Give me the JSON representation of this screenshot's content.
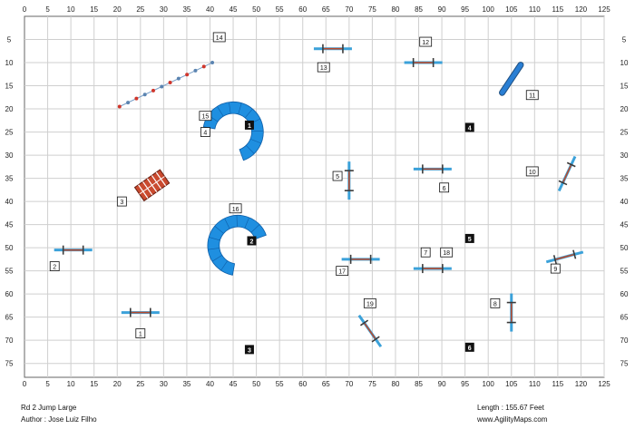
{
  "course": {
    "title": "Rd 2 Jump Large",
    "author": "Author : Jose Luiz Filho",
    "length": "Length : 155.67 Feet",
    "site": "www.AgilityMaps.com"
  },
  "axes": {
    "x_ticks": [
      0,
      5,
      10,
      15,
      20,
      25,
      30,
      35,
      40,
      45,
      50,
      55,
      60,
      65,
      70,
      75,
      80,
      85,
      90,
      95,
      100,
      105,
      110,
      115,
      120,
      125
    ],
    "y_ticks": [
      5,
      10,
      15,
      20,
      25,
      30,
      35,
      40,
      45,
      50,
      55,
      60,
      65,
      70,
      75
    ],
    "x_range": [
      0,
      125
    ],
    "y_range": [
      0,
      78
    ],
    "grid_step": 5,
    "unit": "feet"
  },
  "colors": {
    "grid": "#cfcfcf",
    "bar_blue": "#3ba1d9",
    "bar_red": "#b84a2c",
    "tunnel_blue": "#1f8fe0",
    "wing_dark": "#3a3a3a",
    "number_fill": "#111111",
    "tire_blue": "#2a7fd4"
  },
  "obstacles": {
    "jumps": [
      {
        "id": "jump-1",
        "cx": 25,
        "cy": 64,
        "angle": 0
      },
      {
        "id": "jump-2",
        "cx": 10.5,
        "cy": 50.5,
        "angle": 0
      },
      {
        "id": "jump-5",
        "cx": 70,
        "cy": 35.5,
        "angle": 90
      },
      {
        "id": "jump-6",
        "cx": 88,
        "cy": 33,
        "angle": 0
      },
      {
        "id": "jump-9",
        "cx": 116.5,
        "cy": 52,
        "angle": -15
      },
      {
        "id": "jump-10",
        "cx": 117,
        "cy": 34,
        "angle": -65
      },
      {
        "id": "jump-12",
        "cx": 86,
        "cy": 10,
        "angle": 0
      },
      {
        "id": "jump-13",
        "cx": 66.5,
        "cy": 7,
        "angle": 0
      },
      {
        "id": "jump-17",
        "cx": 72.5,
        "cy": 52.5,
        "angle": 0
      },
      {
        "id": "jump-18",
        "cx": 88,
        "cy": 54.5,
        "angle": 0
      },
      {
        "id": "jump-8",
        "cx": 105,
        "cy": 64,
        "angle": 90
      },
      {
        "id": "jump-19",
        "cx": 74.5,
        "cy": 68,
        "angle": 55
      }
    ],
    "weave": {
      "from": [
        20.5,
        19.5
      ],
      "to": [
        40.5,
        10
      ],
      "poles": 12
    },
    "tire": {
      "from": [
        103,
        16.5
      ],
      "to": [
        107,
        10.5
      ]
    },
    "tunnels": [
      {
        "id": "tunnel-15-4",
        "cx": 45,
        "cy": 25,
        "r_in": 4,
        "r_out": 6.5,
        "start": 190,
        "end": 430
      },
      {
        "id": "tunnel-16-2",
        "cx": 46,
        "cy": 49.5,
        "r_in": 4,
        "r_out": 6.5,
        "start": 100,
        "end": 340
      }
    ],
    "wall": {
      "cx": 27.5,
      "cy": 36.5,
      "angle": -35
    }
  },
  "labels_boxed": [
    {
      "text": "1",
      "x": 25,
      "y": 68.5
    },
    {
      "text": "2",
      "x": 6.5,
      "y": 54
    },
    {
      "text": "3",
      "x": 21,
      "y": 40
    },
    {
      "text": "4",
      "x": 39,
      "y": 25
    },
    {
      "text": "5",
      "x": 67.5,
      "y": 34.5
    },
    {
      "text": "6",
      "x": 90.5,
      "y": 37
    },
    {
      "text": "7",
      "x": 86.5,
      "y": 51
    },
    {
      "text": "8",
      "x": 101.5,
      "y": 62
    },
    {
      "text": "9",
      "x": 114.5,
      "y": 54.5
    },
    {
      "text": "10",
      "x": 109.5,
      "y": 33.5
    },
    {
      "text": "11",
      "x": 109.5,
      "y": 17
    },
    {
      "text": "12",
      "x": 86.5,
      "y": 5.5
    },
    {
      "text": "13",
      "x": 64.5,
      "y": 11
    },
    {
      "text": "14",
      "x": 42,
      "y": 4.5
    },
    {
      "text": "15",
      "x": 39,
      "y": 21.5
    },
    {
      "text": "16",
      "x": 45.5,
      "y": 41.5
    },
    {
      "text": "17",
      "x": 68.5,
      "y": 55
    },
    {
      "text": "18",
      "x": 91,
      "y": 51
    },
    {
      "text": "19",
      "x": 74.5,
      "y": 62
    }
  ],
  "labels_solid": [
    {
      "text": "1",
      "x": 48.5,
      "y": 23.5
    },
    {
      "text": "2",
      "x": 49,
      "y": 48.5
    },
    {
      "text": "3",
      "x": 48.5,
      "y": 72
    },
    {
      "text": "4",
      "x": 96,
      "y": 24
    },
    {
      "text": "5",
      "x": 96,
      "y": 48
    },
    {
      "text": "6",
      "x": 96,
      "y": 71.5
    }
  ]
}
